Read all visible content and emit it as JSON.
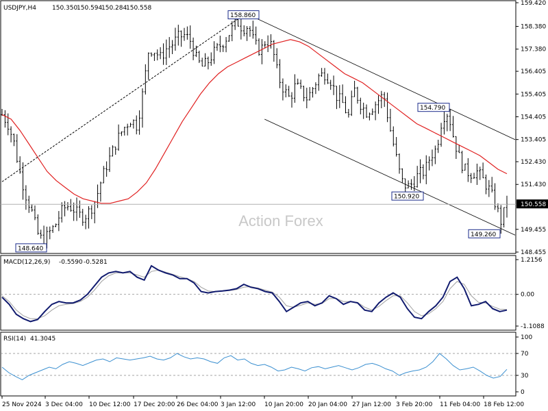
{
  "chart_data": [
    {
      "type": "candlestick",
      "symbol": "USDJPY,H4",
      "ohlc_readout": [
        "150.350",
        "150.594",
        "150.284",
        "150.558"
      ],
      "last_price": "150.558",
      "watermark": "Action Forex",
      "ylim": [
        148.455,
        159.42
      ],
      "y_ticks": [
        "159.420",
        "158.380",
        "157.380",
        "156.405",
        "155.405",
        "154.405",
        "153.405",
        "152.430",
        "151.430",
        "150.558",
        "149.455",
        "148.455"
      ],
      "x_ticks": [
        "25 Nov 2024",
        "3 Dec 04:00",
        "10 Dec 12:00",
        "17 Dec 20:00",
        "26 Dec 04:00",
        "3 Jan 12:00",
        "10 Jan 20:00",
        "20 Jan 04:00",
        "27 Jan 12:00",
        "3 Feb 20:00",
        "11 Feb 04:00",
        "18 Feb 12:00"
      ],
      "annotations": [
        {
          "text": "158.860",
          "price": 158.86
        },
        {
          "text": "148.640",
          "price": 148.64
        },
        {
          "text": "154.790",
          "price": 154.79
        },
        {
          "text": "150.920",
          "price": 150.92
        },
        {
          "text": "149.260",
          "price": 149.26
        }
      ],
      "close_path": [
        154.5,
        154.1,
        153.3,
        152.0,
        151.0,
        150.3,
        149.3,
        148.9,
        149.3,
        149.6,
        150.2,
        150.5,
        150.4,
        150.1,
        150.0,
        150.3,
        150.8,
        151.7,
        152.4,
        153.0,
        153.6,
        154.0,
        154.3,
        154.0,
        155.5,
        157.4,
        157.3,
        157.0,
        157.4,
        157.6,
        157.9,
        158.0,
        157.8,
        157.0,
        156.6,
        156.8,
        157.2,
        157.5,
        157.8,
        158.2,
        158.6,
        158.3,
        158.4,
        157.6,
        157.3,
        157.8,
        157.5,
        156.2,
        155.6,
        155.2,
        155.8,
        155.5,
        155.2,
        155.7,
        156.2,
        156.3,
        156.0,
        155.3,
        155.0,
        154.4,
        155.6,
        155.0,
        154.6,
        154.8,
        155.1,
        155.4,
        154.0,
        152.8,
        151.6,
        151.3,
        151.5,
        151.9,
        152.0,
        152.7,
        153.0,
        154.4,
        154.6,
        153.4,
        152.5,
        152.0,
        151.9,
        152.0,
        151.6,
        151.2,
        150.6,
        149.8,
        150.56
      ],
      "ma_path": [
        154.5,
        154.3,
        153.8,
        153.2,
        152.6,
        152.0,
        151.6,
        151.3,
        151.0,
        150.8,
        150.7,
        150.6,
        150.6,
        150.7,
        150.8,
        151.1,
        151.5,
        152.1,
        152.8,
        153.5,
        154.2,
        154.8,
        155.4,
        155.9,
        156.3,
        156.6,
        156.8,
        157.0,
        157.2,
        157.4,
        157.6,
        157.7,
        157.8,
        157.7,
        157.5,
        157.2,
        156.9,
        156.6,
        156.3,
        156.1,
        155.9,
        155.6,
        155.3,
        155.0,
        154.7,
        154.4,
        154.1,
        153.9,
        153.7,
        153.5,
        153.3,
        153.1,
        152.9,
        152.7,
        152.4,
        152.1,
        151.9
      ],
      "channel_upper": [
        [
          0.48,
          158.98
        ],
        [
          1.0,
          153.4
        ]
      ],
      "channel_lower": [
        [
          0.52,
          154.3
        ],
        [
          1.0,
          149.2
        ]
      ],
      "trend_line": [
        [
          0.0,
          151.55
        ],
        [
          0.48,
          158.9
        ]
      ]
    },
    {
      "type": "line",
      "indicator": "MACD(12,26,9)",
      "values_readout": [
        "-0.5590",
        "-0.5281"
      ],
      "ylim": [
        -1.1088,
        1.2156
      ],
      "y_ticks": [
        "1.2156",
        "0.00",
        "-1.1088"
      ],
      "macd": [
        -0.1,
        -0.35,
        -0.7,
        -0.85,
        -0.95,
        -0.88,
        -0.6,
        -0.35,
        -0.25,
        -0.3,
        -0.3,
        -0.2,
        0.0,
        0.3,
        0.6,
        0.75,
        0.8,
        0.75,
        0.8,
        0.6,
        0.5,
        1.0,
        0.85,
        0.75,
        0.68,
        0.55,
        0.55,
        0.4,
        0.1,
        0.05,
        0.1,
        0.12,
        0.15,
        0.2,
        0.35,
        0.25,
        0.2,
        0.1,
        0.05,
        -0.25,
        -0.6,
        -0.45,
        -0.3,
        -0.25,
        -0.4,
        -0.3,
        -0.05,
        -0.15,
        -0.35,
        -0.25,
        -0.3,
        -0.55,
        -0.6,
        -0.3,
        -0.1,
        0.05,
        -0.1,
        -0.5,
        -0.8,
        -0.85,
        -0.6,
        -0.4,
        -0.1,
        0.45,
        0.6,
        0.2,
        -0.4,
        -0.35,
        -0.25,
        -0.5,
        -0.6,
        -0.55
      ],
      "signal": [
        -0.05,
        -0.25,
        -0.55,
        -0.75,
        -0.85,
        -0.85,
        -0.75,
        -0.55,
        -0.4,
        -0.35,
        -0.32,
        -0.25,
        -0.1,
        0.15,
        0.45,
        0.65,
        0.75,
        0.75,
        0.75,
        0.68,
        0.6,
        0.8,
        0.85,
        0.78,
        0.7,
        0.62,
        0.55,
        0.45,
        0.25,
        0.12,
        0.1,
        0.11,
        0.13,
        0.17,
        0.25,
        0.27,
        0.22,
        0.15,
        0.08,
        -0.1,
        -0.4,
        -0.45,
        -0.38,
        -0.3,
        -0.35,
        -0.32,
        -0.15,
        -0.14,
        -0.25,
        -0.25,
        -0.28,
        -0.45,
        -0.55,
        -0.42,
        -0.22,
        -0.05,
        -0.05,
        -0.3,
        -0.6,
        -0.75,
        -0.68,
        -0.5,
        -0.25,
        0.2,
        0.45,
        0.35,
        -0.05,
        -0.28,
        -0.3,
        -0.42,
        -0.52,
        -0.53
      ]
    },
    {
      "type": "line",
      "indicator": "RSI(14)",
      "value_readout": "41.3045",
      "ylim": [
        0,
        100
      ],
      "y_ticks": [
        "100",
        "70",
        "30",
        "0"
      ],
      "rsi": [
        45,
        35,
        28,
        22,
        30,
        35,
        40,
        45,
        42,
        50,
        55,
        52,
        48,
        53,
        58,
        60,
        55,
        62,
        60,
        58,
        60,
        62,
        65,
        60,
        58,
        62,
        70,
        64,
        60,
        62,
        60,
        55,
        52,
        62,
        66,
        58,
        60,
        52,
        48,
        50,
        45,
        38,
        40,
        45,
        42,
        38,
        44,
        46,
        42,
        45,
        48,
        44,
        40,
        44,
        50,
        52,
        48,
        42,
        38,
        30,
        35,
        38,
        40,
        45,
        55,
        70,
        60,
        48,
        40,
        42,
        45,
        38,
        30,
        25,
        28,
        41
      ]
    }
  ]
}
